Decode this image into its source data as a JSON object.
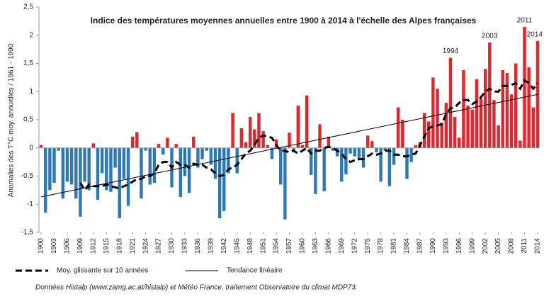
{
  "chart_data": {
    "type": "bar",
    "title": "Indice des températures moyennes annuelles entre 1900 à 2014  à l'échelle des Alpes françaises",
    "y_label": "Anomalies des T°C moy. annuelles / 1961 - 1990",
    "source": "Données Histalp (www.zamg.ac.at/histalp) et Météo France, traitement Observatoire du climat MDP73.",
    "x": [
      1900,
      1901,
      1902,
      1903,
      1904,
      1905,
      1906,
      1907,
      1908,
      1909,
      1910,
      1911,
      1912,
      1913,
      1914,
      1915,
      1916,
      1917,
      1918,
      1919,
      1920,
      1921,
      1922,
      1923,
      1924,
      1925,
      1926,
      1927,
      1928,
      1929,
      1930,
      1931,
      1932,
      1933,
      1934,
      1935,
      1936,
      1937,
      1938,
      1939,
      1940,
      1941,
      1942,
      1943,
      1944,
      1945,
      1946,
      1947,
      1948,
      1949,
      1950,
      1951,
      1952,
      1953,
      1954,
      1955,
      1956,
      1957,
      1958,
      1959,
      1960,
      1961,
      1962,
      1963,
      1964,
      1965,
      1966,
      1967,
      1968,
      1969,
      1970,
      1971,
      1972,
      1973,
      1974,
      1975,
      1976,
      1977,
      1978,
      1979,
      1980,
      1981,
      1982,
      1983,
      1984,
      1985,
      1986,
      1987,
      1988,
      1989,
      1990,
      1991,
      1992,
      1993,
      1994,
      1995,
      1996,
      1997,
      1998,
      1999,
      2000,
      2001,
      2002,
      2003,
      2004,
      2005,
      2006,
      2007,
      2008,
      2009,
      2010,
      2011,
      2012,
      2013,
      2014
    ],
    "values": [
      0.05,
      -1.15,
      -0.75,
      -0.62,
      -0.05,
      -0.9,
      -0.6,
      -0.65,
      -0.9,
      -1.22,
      -0.6,
      -0.75,
      0.08,
      -0.92,
      -0.45,
      -0.75,
      -0.78,
      -0.35,
      -1.25,
      -0.55,
      -1.03,
      0.2,
      0.28,
      -0.9,
      -0.05,
      -0.65,
      -0.62,
      0.07,
      -0.12,
      0.18,
      -0.7,
      0.07,
      -0.87,
      -0.5,
      -0.8,
      0.2,
      -0.35,
      -0.2,
      -0.05,
      -0.3,
      -0.55,
      -1.25,
      -1.12,
      -0.45,
      0.62,
      -0.45,
      0.35,
      0.1,
      0.55,
      0.33,
      0.62,
      0.3,
      0.05,
      -0.2,
      0.15,
      -0.65,
      -1.27,
      0.27,
      -0.05,
      0.75,
      0.05,
      0.93,
      -0.48,
      -0.82,
      0.42,
      -0.77,
      0.2,
      -0.05,
      -0.15,
      -0.6,
      -0.47,
      -0.1,
      -0.15,
      -0.22,
      -0.35,
      0.22,
      0.12,
      -0.08,
      -0.6,
      -0.05,
      -0.68,
      -0.3,
      0.72,
      0.5,
      -0.55,
      -0.25,
      0.05,
      0.1,
      0.62,
      0.47,
      1.25,
      1.05,
      0.45,
      0.8,
      1.6,
      0.55,
      0.18,
      1.38,
      0.75,
      0.68,
      1.22,
      0.88,
      1.4,
      1.87,
      0.85,
      0.4,
      1.38,
      1.33,
      0.95,
      1.5,
      0.13,
      2.15,
      1.43,
      0.72,
      1.9
    ],
    "positive_color": "#e3262d",
    "negative_color": "#2f78b7",
    "series": [
      {
        "name": "Moy. glissante sur 10 années",
        "color": "#000000",
        "dash": true,
        "values": [
          null,
          null,
          null,
          null,
          null,
          null,
          null,
          null,
          null,
          -0.62,
          -0.75,
          -0.65,
          -0.68,
          -0.68,
          -0.68,
          -0.65,
          -0.68,
          -0.7,
          -0.72,
          -0.68,
          -0.65,
          -0.6,
          -0.55,
          -0.55,
          -0.5,
          -0.5,
          -0.45,
          -0.3,
          -0.25,
          -0.25,
          -0.35,
          -0.25,
          -0.3,
          -0.3,
          -0.35,
          -0.28,
          -0.3,
          -0.3,
          -0.35,
          -0.38,
          -0.45,
          -0.5,
          -0.48,
          -0.38,
          -0.35,
          -0.3,
          -0.2,
          -0.1,
          -0.05,
          0.05,
          0.18,
          0.22,
          0.2,
          0.18,
          0.05,
          -0.05,
          -0.05,
          -0.08,
          -0.05,
          -0.1,
          -0.05,
          0,
          -0.1,
          -0.05,
          -0.05,
          0,
          0.02,
          0,
          -0.05,
          -0.1,
          -0.2,
          -0.25,
          -0.22,
          -0.2,
          -0.2,
          -0.15,
          -0.1,
          -0.12,
          -0.1,
          -0.05,
          -0.05,
          -0.12,
          -0.12,
          -0.15,
          -0.15,
          -0.12,
          -0.1,
          0.05,
          0.2,
          0.35,
          0.38,
          0.4,
          0.42,
          0.6,
          0.7,
          0.72,
          0.8,
          0.85,
          0.85,
          0.78,
          0.82,
          0.9,
          1.0,
          1.05,
          1.0,
          1.0,
          1.1,
          1.1,
          1.12,
          1.15,
          1.05,
          1.2,
          1.15,
          1.05,
          1.15
        ]
      },
      {
        "name": "Tendance linéaire",
        "color": "#000000",
        "dash": false,
        "x": [
          1900,
          2014
        ],
        "values": [
          -0.87,
          0.95
        ]
      }
    ],
    "annotations": [
      {
        "text": "1994",
        "x": 1994
      },
      {
        "text": "2003",
        "x": 2003
      },
      {
        "text": "2011",
        "x": 2011
      },
      {
        "text": "2014",
        "x": 2014
      }
    ],
    "xlim": [
      1899.5,
      2014.5
    ],
    "xticks": [
      1900,
      1903,
      1906,
      1909,
      1912,
      1915,
      1918,
      1921,
      1924,
      1927,
      1930,
      1933,
      1936,
      1939,
      1942,
      1945,
      1948,
      1951,
      1954,
      1957,
      1960,
      1963,
      1966,
      1969,
      1972,
      1975,
      1978,
      1981,
      1984,
      1987,
      1990,
      1993,
      1996,
      1999,
      2002,
      2005,
      2008,
      2011,
      2014
    ],
    "ylim": [
      -1.5,
      2.5
    ],
    "yticks": [
      {
        "value": -1.5,
        "label": "-1,5"
      },
      -1,
      {
        "value": -0.5,
        "label": "-0,5"
      },
      0,
      {
        "value": 0.5,
        "label": "0,5"
      },
      1,
      {
        "value": 1.5,
        "label": "1,5"
      },
      2,
      {
        "value": 2.5,
        "label": "2,5"
      }
    ]
  }
}
